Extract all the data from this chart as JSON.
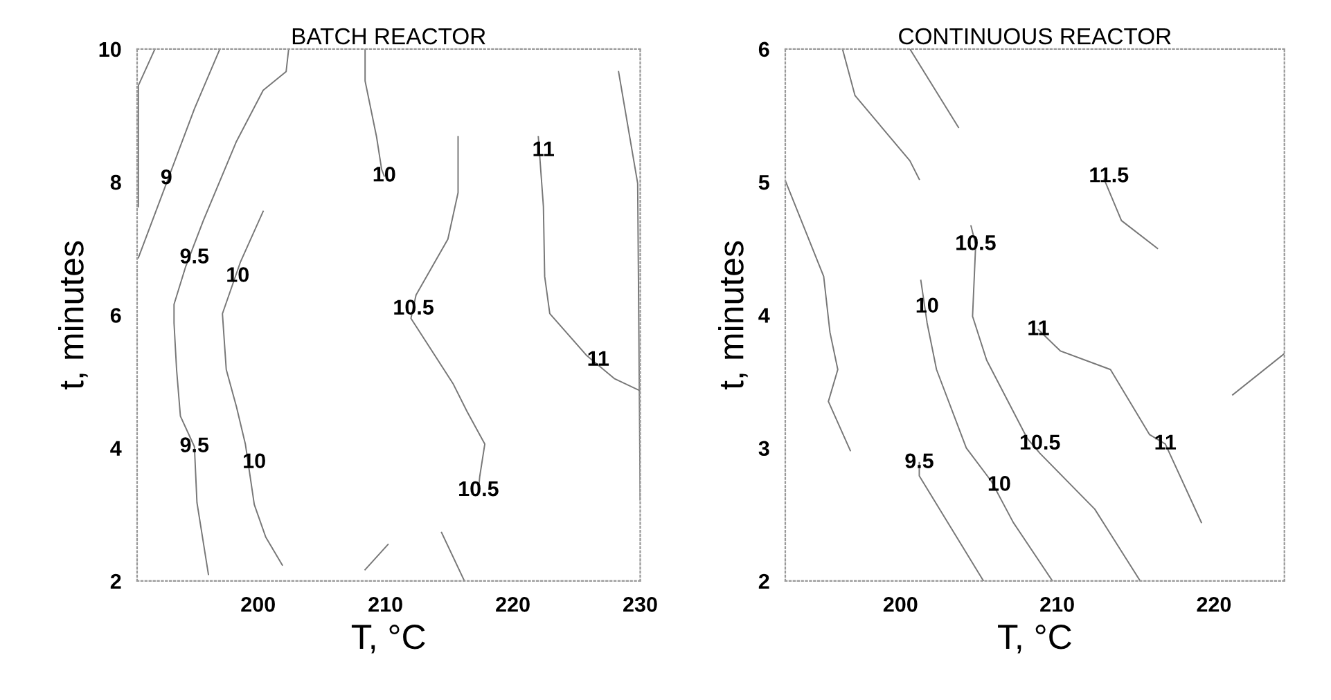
{
  "chart_data": [
    {
      "type": "line",
      "title": "BATCH REACTOR",
      "xlabel": "T, °C",
      "ylabel": "t, minutes",
      "xlim": [
        190.5,
        230
      ],
      "ylim": [
        2,
        10
      ],
      "xticks": [
        200,
        210,
        220,
        230
      ],
      "yticks": [
        2,
        4,
        6,
        8,
        10
      ],
      "grid": false,
      "legend": false,
      "line_style": "solid",
      "marker": "none",
      "series": [
        {
          "color": "#777777",
          "x": [
            191.9,
            190.6,
            190.6
          ],
          "values": [
            10,
            9.45,
            7.63
          ]
        },
        {
          "color": "#777777",
          "x": [
            197.0,
            195.0,
            192.8,
            190.6
          ],
          "values": [
            10,
            9.1,
            7.98,
            6.86
          ]
        },
        {
          "color": "#777777",
          "x": [
            202.4,
            202.2,
            200.4,
            198.3,
            195.7,
            194.3,
            193.4,
            193.4,
            193.6,
            193.9,
            195.0,
            195.2,
            196.1
          ],
          "values": [
            10,
            9.66,
            9.38,
            8.61,
            7.42,
            6.72,
            6.16,
            5.88,
            5.18,
            4.48,
            4.02,
            3.18,
            2.1
          ]
        },
        {
          "color": "#777777",
          "x": [
            200.4,
            198.6,
            197.2,
            197.5,
            198.3,
            199.0,
            199.7,
            200.6,
            201.9
          ],
          "values": [
            7.56,
            6.79,
            6.02,
            5.18,
            4.62,
            4.06,
            3.15,
            2.66,
            2.24
          ]
        },
        {
          "color": "#777777",
          "x": [
            208.4,
            208.4,
            209.3,
            209.7,
            209.9
          ],
          "values": [
            10,
            9.52,
            8.68,
            8.19,
            8.09
          ]
        },
        {
          "color": "#777777",
          "x": [
            215.7,
            215.7,
            214.9,
            212.4,
            212.0,
            215.3,
            216.4,
            217.8,
            217.4,
            217.3
          ],
          "values": [
            8.68,
            7.84,
            7.14,
            6.3,
            5.95,
            4.97,
            4.55,
            4.06,
            3.57,
            3.36
          ]
        },
        {
          "color": "#777777",
          "x": [
            208.4,
            210.2
          ],
          "values": [
            2.17,
            2.55
          ]
        },
        {
          "color": "#777777",
          "x": [
            214.4,
            216.2
          ],
          "values": [
            2.73,
            2.0
          ]
        },
        {
          "color": "#777777",
          "x": [
            222.0,
            222.4,
            222.5,
            222.9,
            225.8,
            228.0,
            230
          ],
          "values": [
            8.68,
            7.63,
            6.58,
            6.02,
            5.39,
            5.04,
            4.86
          ]
        },
        {
          "color": "#777777",
          "x": [
            228.3,
            229.8,
            230
          ],
          "values": [
            9.66,
            7.98,
            3.22
          ]
        }
      ],
      "annotations": [
        {
          "text": "9",
          "x": 192.8,
          "y": 8.05
        },
        {
          "text": "9.5",
          "x": 195.0,
          "y": 6.86
        },
        {
          "text": "10",
          "x": 198.4,
          "y": 6.58
        },
        {
          "text": "10",
          "x": 209.9,
          "y": 8.09
        },
        {
          "text": "11",
          "x": 222.4,
          "y": 8.47
        },
        {
          "text": "10.5",
          "x": 212.2,
          "y": 6.09
        },
        {
          "text": "11",
          "x": 226.7,
          "y": 5.32
        },
        {
          "text": "9.5",
          "x": 195.0,
          "y": 4.02
        },
        {
          "text": "10",
          "x": 199.7,
          "y": 3.78
        },
        {
          "text": "10.5",
          "x": 217.3,
          "y": 3.36
        }
      ]
    },
    {
      "type": "line",
      "title": "CONTINUOUS REACTOR",
      "xlabel": "T, °C",
      "ylabel": "t, minutes",
      "xlim": [
        192.65,
        224.5
      ],
      "ylim": [
        2,
        6
      ],
      "xticks": [
        200,
        210,
        220
      ],
      "yticks": [
        2,
        3,
        4,
        5,
        6
      ],
      "grid": false,
      "legend": false,
      "line_style": "solid",
      "marker": "none",
      "series": [
        {
          "color": "#777777",
          "x": [
            196.3,
            197.1,
            200.6,
            201.2
          ],
          "values": [
            6.0,
            5.65,
            5.16,
            5.02
          ]
        },
        {
          "color": "#777777",
          "x": [
            200.6,
            203.7
          ],
          "values": [
            6.0,
            5.41
          ]
        },
        {
          "color": "#777777",
          "x": [
            192.65,
            195.1,
            195.5,
            196.0,
            195.4,
            196.8
          ],
          "values": [
            5.01,
            4.29,
            3.87,
            3.59,
            3.35,
            2.98
          ]
        },
        {
          "color": "#777777",
          "x": [
            201.3,
            201.7,
            202.3,
            204.2,
            205.8,
            207.2,
            209.7
          ],
          "values": [
            4.26,
            3.94,
            3.59,
            3.0,
            2.75,
            2.44,
            2.0
          ]
        },
        {
          "color": "#777777",
          "x": [
            201.2,
            201.2,
            205.3
          ],
          "values": [
            2.89,
            2.79,
            2.0
          ]
        },
        {
          "color": "#777777",
          "x": [
            204.5,
            204.8,
            204.6,
            205.5,
            208.1,
            208.9,
            212.4,
            215.3
          ],
          "values": [
            4.67,
            4.53,
            3.99,
            3.66,
            3.07,
            2.96,
            2.54,
            2.0
          ]
        },
        {
          "color": "#777777",
          "x": [
            208.8,
            210.2,
            213.4,
            215.9,
            216.9,
            219.2
          ],
          "values": [
            3.89,
            3.73,
            3.59,
            3.1,
            3.03,
            2.44
          ]
        },
        {
          "color": "#777777",
          "x": [
            213.0,
            214.1,
            216.4
          ],
          "values": [
            5.02,
            4.71,
            4.5
          ]
        },
        {
          "color": "#777777",
          "x": [
            221.2,
            224.5
          ],
          "values": [
            3.4,
            3.71
          ]
        }
      ],
      "annotations": [
        {
          "text": "11.5",
          "x": 213.3,
          "y": 5.04
        },
        {
          "text": "10.5",
          "x": 204.8,
          "y": 4.53
        },
        {
          "text": "10",
          "x": 201.7,
          "y": 4.06
        },
        {
          "text": "11",
          "x": 208.8,
          "y": 3.89
        },
        {
          "text": "10.5",
          "x": 208.9,
          "y": 3.03
        },
        {
          "text": "11",
          "x": 216.9,
          "y": 3.03
        },
        {
          "text": "9.5",
          "x": 201.2,
          "y": 2.89
        },
        {
          "text": "10",
          "x": 206.3,
          "y": 2.72
        }
      ]
    }
  ]
}
